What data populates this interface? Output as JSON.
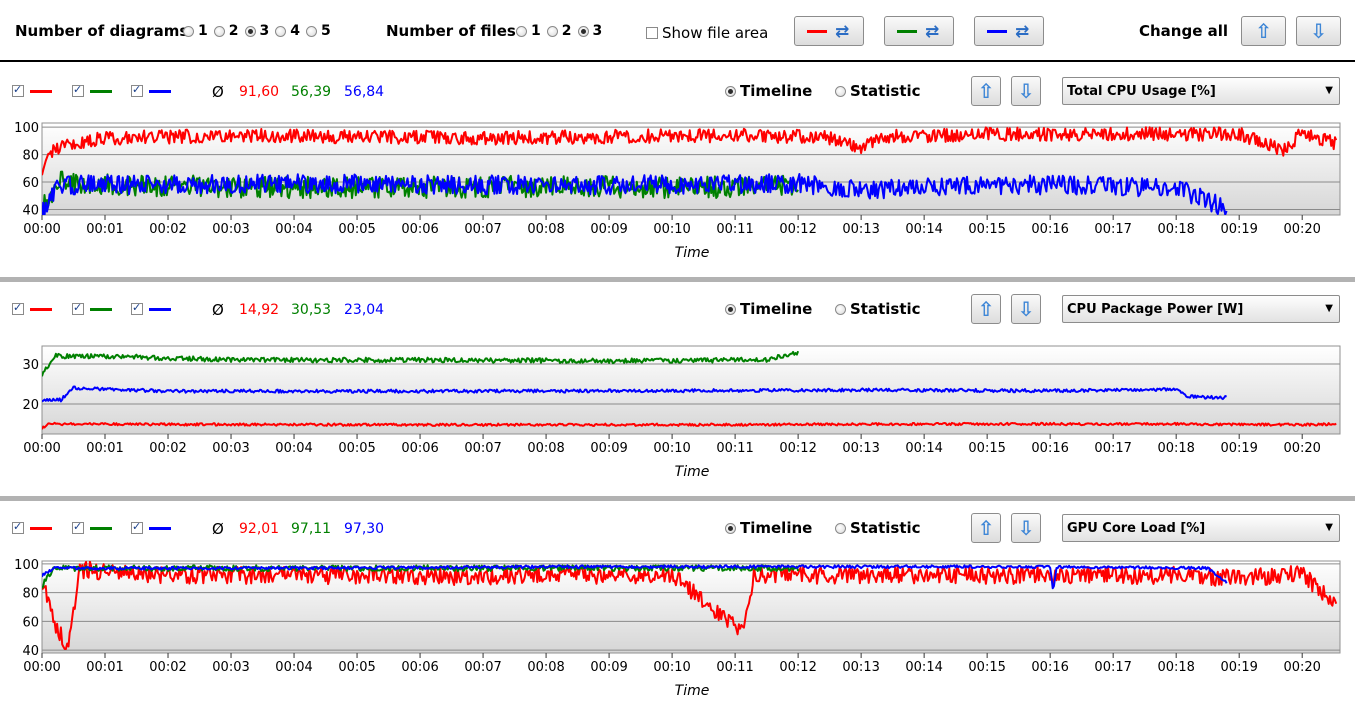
{
  "toolbar": {
    "num_diagrams_label": "Number of diagrams",
    "num_diagrams_options": [
      "1",
      "2",
      "3",
      "4",
      "5"
    ],
    "num_diagrams_selected": "3",
    "num_files_label": "Number of files",
    "num_files_options": [
      "1",
      "2",
      "3"
    ],
    "num_files_selected": "3",
    "show_file_area_label": "Show file area",
    "show_file_area_checked": false,
    "change_all_label": "Change all",
    "series_colors": [
      "#ff0000",
      "#008000",
      "#0000ff"
    ]
  },
  "panels": [
    {
      "avg_symbol": "Ø",
      "averages": [
        "91,60",
        "56,39",
        "56,84"
      ],
      "view_options": [
        "Timeline",
        "Statistic"
      ],
      "view_selected": "Timeline",
      "metric": "Total CPU Usage [%]",
      "chart_data": {
        "type": "line",
        "xlabel": "Time",
        "x_ticks": [
          "00:00",
          "00:01",
          "00:02",
          "00:03",
          "00:04",
          "00:05",
          "00:06",
          "00:07",
          "00:08",
          "00:09",
          "00:10",
          "00:11",
          "00:12",
          "00:13",
          "00:14",
          "00:15",
          "00:16",
          "00:17",
          "00:18",
          "00:19",
          "00:20"
        ],
        "y_ticks": [
          40,
          60,
          80,
          100
        ],
        "ylim": [
          36,
          103
        ],
        "xlim_min": [
          0,
          20.6
        ],
        "series": [
          {
            "color": "#ff0000",
            "x_end_min": 20.55,
            "base": 94,
            "noise": 10,
            "points": [
              [
                0,
                70
              ],
              [
                0.2,
                85
              ],
              [
                1,
                92
              ],
              [
                3,
                94
              ],
              [
                5,
                93
              ],
              [
                7,
                92
              ],
              [
                9,
                93
              ],
              [
                11,
                94
              ],
              [
                12.4,
                93
              ],
              [
                13,
                86
              ],
              [
                13.3,
                93
              ],
              [
                15,
                95
              ],
              [
                17,
                95
              ],
              [
                19,
                95
              ],
              [
                19.7,
                83
              ],
              [
                20,
                96
              ],
              [
                20.55,
                88
              ]
            ]
          },
          {
            "color": "#008000",
            "x_end_min": 12.0,
            "base": 57,
            "noise": 16,
            "points": [
              [
                0,
                45
              ],
              [
                0.3,
                60
              ],
              [
                2,
                57
              ],
              [
                4,
                56
              ],
              [
                6,
                56
              ],
              [
                8,
                57
              ],
              [
                10,
                56
              ],
              [
                12,
                57
              ]
            ]
          },
          {
            "color": "#0000ff",
            "x_end_min": 18.8,
            "base": 59,
            "noise": 14,
            "points": [
              [
                0,
                40
              ],
              [
                0.3,
                58
              ],
              [
                2,
                58
              ],
              [
                4,
                59
              ],
              [
                6,
                58
              ],
              [
                8,
                58
              ],
              [
                10,
                58
              ],
              [
                12,
                59
              ],
              [
                13,
                54
              ],
              [
                14,
                57
              ],
              [
                16,
                58
              ],
              [
                17,
                57
              ],
              [
                18,
                56
              ],
              [
                18.4,
                48
              ],
              [
                18.8,
                41
              ]
            ]
          }
        ]
      }
    },
    {
      "avg_symbol": "Ø",
      "averages": [
        "14,92",
        "30,53",
        "23,04"
      ],
      "view_options": [
        "Timeline",
        "Statistic"
      ],
      "view_selected": "Timeline",
      "metric": "CPU Package Power [W]",
      "chart_data": {
        "type": "line",
        "xlabel": "Time",
        "x_ticks": [
          "00:00",
          "00:01",
          "00:02",
          "00:03",
          "00:04",
          "00:05",
          "00:06",
          "00:07",
          "00:08",
          "00:09",
          "00:10",
          "00:11",
          "00:12",
          "00:13",
          "00:14",
          "00:15",
          "00:16",
          "00:17",
          "00:18",
          "00:19",
          "00:20"
        ],
        "y_ticks": [
          20,
          30
        ],
        "ylim": [
          12.5,
          34.5
        ],
        "xlim_min": [
          0,
          20.6
        ],
        "series": [
          {
            "color": "#ff0000",
            "x_end_min": 20.55,
            "base": 14.9,
            "noise": 0.6,
            "points": [
              [
                0,
                14
              ],
              [
                0.1,
                15
              ],
              [
                2,
                14.9
              ],
              [
                6,
                14.8
              ],
              [
                10,
                14.8
              ],
              [
                14,
                15
              ],
              [
                18,
                15
              ],
              [
                20,
                14.8
              ],
              [
                20.55,
                15
              ]
            ]
          },
          {
            "color": "#008000",
            "x_end_min": 12.0,
            "base": 30.9,
            "noise": 1.2,
            "points": [
              [
                0,
                27.5
              ],
              [
                0.2,
                32
              ],
              [
                1,
                32
              ],
              [
                3,
                31
              ],
              [
                6,
                31
              ],
              [
                9,
                30.8
              ],
              [
                11.5,
                31
              ],
              [
                12,
                33
              ],
              [
                12.01,
                30
              ]
            ]
          },
          {
            "color": "#0000ff",
            "x_end_min": 18.8,
            "base": 23.3,
            "noise": 0.8,
            "points": [
              [
                0,
                21
              ],
              [
                0.3,
                21
              ],
              [
                0.5,
                24
              ],
              [
                2,
                23.2
              ],
              [
                6,
                23.2
              ],
              [
                10,
                23.3
              ],
              [
                13,
                23.5
              ],
              [
                16,
                23.3
              ],
              [
                18,
                23.6
              ],
              [
                18.2,
                21.8
              ],
              [
                18.8,
                21.6
              ]
            ]
          }
        ]
      }
    },
    {
      "avg_symbol": "Ø",
      "averages": [
        "92,01",
        "97,11",
        "97,30"
      ],
      "view_options": [
        "Timeline",
        "Statistic"
      ],
      "view_selected": "Timeline",
      "metric": "GPU Core Load [%]",
      "chart_data": {
        "type": "line",
        "xlabel": "Time",
        "x_ticks": [
          "00:00",
          "00:01",
          "00:02",
          "00:03",
          "00:04",
          "00:05",
          "00:06",
          "00:07",
          "00:08",
          "00:09",
          "00:10",
          "00:11",
          "00:12",
          "00:13",
          "00:14",
          "00:15",
          "00:16",
          "00:17",
          "00:18",
          "00:19",
          "00:20"
        ],
        "y_ticks": [
          40,
          60,
          80,
          100
        ],
        "ylim": [
          38,
          102
        ],
        "xlim_min": [
          0,
          20.6
        ],
        "series": [
          {
            "color": "#ff0000",
            "x_end_min": 20.55,
            "base": 92,
            "noise": 12,
            "points": [
              [
                0,
                88
              ],
              [
                0.2,
                60
              ],
              [
                0.4,
                40
              ],
              [
                0.6,
                96
              ],
              [
                2,
                92
              ],
              [
                4,
                92
              ],
              [
                6,
                91
              ],
              [
                8,
                92
              ],
              [
                10,
                92
              ],
              [
                11.1,
                52
              ],
              [
                11.3,
                92
              ],
              [
                14,
                92
              ],
              [
                16,
                92
              ],
              [
                18,
                92
              ],
              [
                19,
                90
              ],
              [
                20,
                93
              ],
              [
                20.55,
                70
              ]
            ]
          },
          {
            "color": "#008000",
            "x_end_min": 12.0,
            "base": 97,
            "noise": 4,
            "points": [
              [
                0,
                85
              ],
              [
                0.2,
                97
              ],
              [
                3,
                97
              ],
              [
                6,
                97
              ],
              [
                9,
                97
              ],
              [
                12,
                97
              ]
            ]
          },
          {
            "color": "#0000ff",
            "x_end_min": 18.8,
            "base": 97.5,
            "noise": 2,
            "points": [
              [
                0,
                92
              ],
              [
                0.2,
                97
              ],
              [
                4,
                97
              ],
              [
                8,
                98
              ],
              [
                12,
                98
              ],
              [
                16,
                98
              ],
              [
                16.05,
                80
              ],
              [
                16.1,
                98
              ],
              [
                18.5,
                97
              ],
              [
                18.8,
                87
              ]
            ]
          }
        ]
      }
    }
  ]
}
